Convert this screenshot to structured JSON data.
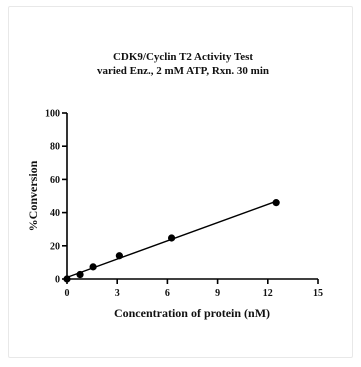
{
  "chart_data": {
    "type": "scatter",
    "title": "CDK9/Cyclin T2 Activity Test",
    "subtitle": "varied Enz., 2 mM ATP, Rxn. 30 min",
    "xlabel": "Concentration of protein (nM)",
    "ylabel": "%Conversion",
    "xlim": [
      0,
      15
    ],
    "ylim": [
      0,
      100
    ],
    "xticks": [
      0,
      3,
      6,
      9,
      12,
      15
    ],
    "yticks": [
      0,
      20,
      40,
      60,
      80,
      100
    ],
    "grid": false,
    "series": [
      {
        "x": [
          0,
          0.78,
          1.56,
          3.13,
          6.25,
          12.5
        ],
        "y": [
          0,
          2.7,
          7.3,
          14.0,
          24.7,
          46.0
        ],
        "marker": "circle",
        "fit_line": true,
        "color": "#000000"
      }
    ]
  }
}
